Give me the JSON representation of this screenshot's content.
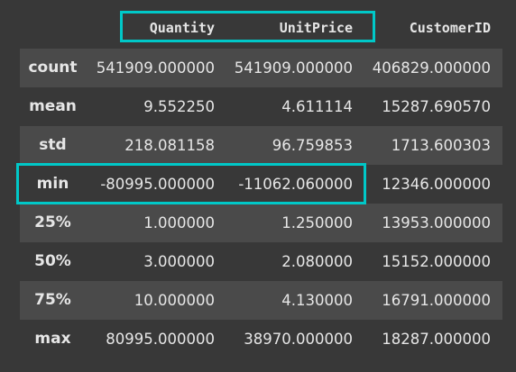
{
  "columns": [
    "Quantity",
    "UnitPrice",
    "CustomerID"
  ],
  "rows": [
    {
      "label": "count",
      "values": [
        "541909.000000",
        "541909.000000",
        "406829.000000"
      ]
    },
    {
      "label": "mean",
      "values": [
        "9.552250",
        "4.611114",
        "15287.690570"
      ]
    },
    {
      "label": "std",
      "values": [
        "218.081158",
        "96.759853",
        "1713.600303"
      ]
    },
    {
      "label": "min",
      "values": [
        "-80995.000000",
        "-11062.060000",
        "12346.000000"
      ]
    },
    {
      "label": "25%",
      "values": [
        "1.000000",
        "1.250000",
        "13953.000000"
      ]
    },
    {
      "label": "50%",
      "values": [
        "3.000000",
        "2.080000",
        "15152.000000"
      ]
    },
    {
      "label": "75%",
      "values": [
        "10.000000",
        "4.130000",
        "16791.000000"
      ]
    },
    {
      "label": "max",
      "values": [
        "80995.000000",
        "38970.000000",
        "18287.000000"
      ]
    }
  ],
  "highlight_color": "#00c8c8"
}
